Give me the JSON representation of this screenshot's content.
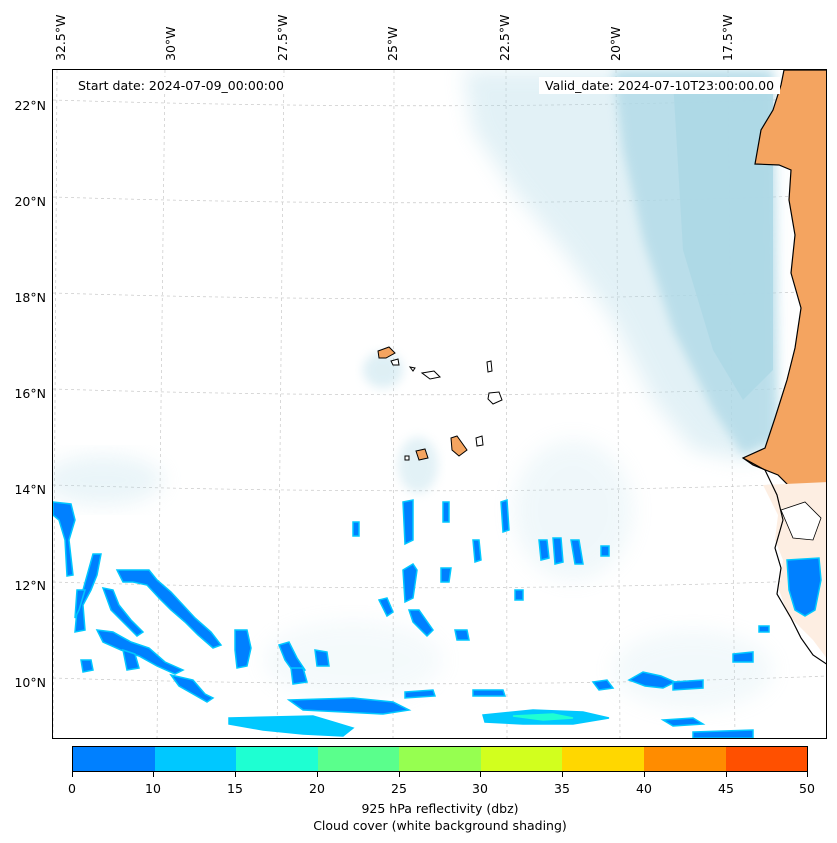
{
  "map": {
    "start_label": "Start date: 2024-07-09_00:00:00",
    "valid_label": "Valid_date: 2024-07-10T23:00:00.00",
    "longitude_labels": [
      "32.5°W",
      "30°W",
      "27.5°W",
      "25°W",
      "22.5°W",
      "20°W",
      "17.5°W"
    ],
    "latitude_labels": [
      "22°N",
      "20°N",
      "18°N",
      "16°N",
      "14°N",
      "12°N",
      "10°N"
    ],
    "colors": {
      "land": "#f4a460",
      "cloud": "#add8e6",
      "coast": "#000000"
    }
  },
  "colorbar": {
    "ticks": [
      "0",
      "10",
      "15",
      "20",
      "25",
      "30",
      "35",
      "40",
      "45",
      "50"
    ],
    "colors": [
      "#0080ff",
      "#00c8ff",
      "#1effd2",
      "#5aff8c",
      "#96ff50",
      "#d2ff1e",
      "#ffd700",
      "#ff8c00",
      "#ff5000"
    ],
    "title_line1": "925 hPa reflectivity (dbz)",
    "title_line2": "Cloud cover (white background shading)"
  }
}
